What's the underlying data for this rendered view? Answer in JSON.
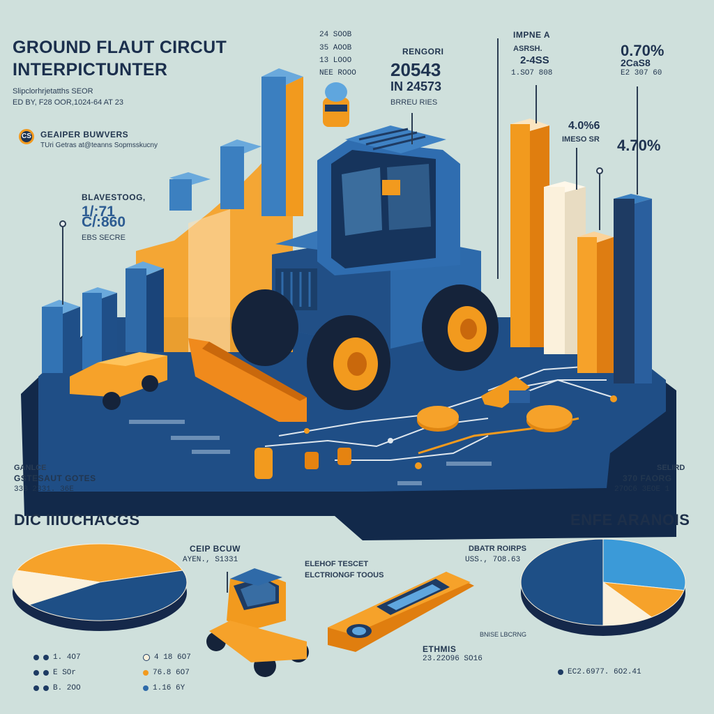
{
  "header": {
    "title_line1": "GROUND FLAUT CIRCUT",
    "title_line2": "INTERPICTUNTER",
    "subtitle_line1": "Slipclorhrjetatths SEOR",
    "subtitle_line2": "ED BY, F28 OOR,1024-64 AT 23",
    "brand_badge": "CS",
    "brand_name": "GEAIPER BUWVERS",
    "brand_tagline": "TUri Getras at@teanns Sopmsskucny"
  },
  "top_stats": {
    "col_a": [
      "24 SOOB",
      "35 AOOB",
      "13 LOOO",
      "NEE ROOO"
    ],
    "center_label": "RENGORI",
    "center_value1": "20543",
    "center_value2": "IN 24573",
    "center_caption": "BRREU RIES",
    "right_label1": "IMPNE A",
    "right_label2": "ASRSH.",
    "right_value": "2-4SS",
    "right_caption": "1.SO7 808",
    "far_right_pct": "0.70%",
    "far_right_case": "2CaS8",
    "far_right_caption": "E2 307 60"
  },
  "mid_stats": {
    "left_label": "BLAVESTOOG,",
    "left_value1": "1/:71",
    "left_value2": "C/:860",
    "left_caption": "EBS SECRE",
    "right_value": "4.0%6",
    "right_caption": "IMESO SR",
    "right_pct": "4.70%"
  },
  "lower_stats": {
    "left_label1": "GANLCE",
    "left_label2": "GSTESAUT GOTES",
    "left_value": "33B 2331. 36E",
    "right_label": "SELIRD",
    "right_value": "370 FAORG",
    "right_caption": "27OC6 3EOE 1"
  },
  "sections": {
    "left_title": "DIC IIIUCHACGS",
    "right_title": "ENFE ARANOIS"
  },
  "bottom": {
    "ceip_label": "CEIP BCUW",
    "ceip_value": "AYEN., S1331",
    "tools_label1": "ELEHOF TESCET",
    "tools_label2": "ELCTRIONGF TOOUS",
    "bgd_label": "DBATR ROIRPS",
    "bgd_value": "USS., 7O8.63",
    "ethmis_label": "ETHMIS",
    "ethmis_value": "23.22O96 SO16",
    "tiny_label": "BNISE LBCRNG",
    "right_footnote": "EC2.6977. 6O2.41"
  },
  "legend_left": [
    "1. 4O7",
    "E SOr",
    "B. 2OO"
  ],
  "legend_mid": [
    "4 18 6O7",
    "76.8 6O7",
    "1.16 6Y"
  ],
  "colors": {
    "background": "#cfe0dc",
    "navy": "#1e3b63",
    "blue": "#2e6aa9",
    "light_blue": "#5aa4d8",
    "orange": "#f29a1e",
    "cream": "#fbf3dc"
  },
  "chart_data": [
    {
      "type": "pie",
      "title": "DIC IIIUCHACGS",
      "labels": [
        "orange",
        "navy",
        "cream"
      ],
      "values": [
        40,
        45,
        15
      ]
    },
    {
      "type": "pie",
      "title": "ENFE ARANOIS",
      "labels": [
        "light blue",
        "orange",
        "cream",
        "navy"
      ],
      "values": [
        28,
        12,
        10,
        50
      ]
    }
  ]
}
